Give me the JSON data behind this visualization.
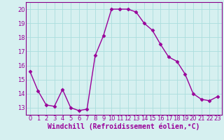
{
  "x": [
    0,
    1,
    2,
    3,
    4,
    5,
    6,
    7,
    8,
    9,
    10,
    11,
    12,
    13,
    14,
    15,
    16,
    17,
    18,
    19,
    20,
    21,
    22,
    23
  ],
  "y": [
    15.6,
    14.2,
    13.2,
    13.1,
    14.3,
    13.0,
    12.8,
    12.9,
    16.7,
    18.1,
    20.0,
    20.0,
    20.0,
    19.8,
    19.0,
    18.5,
    17.5,
    16.6,
    16.3,
    15.4,
    14.0,
    13.6,
    13.5,
    13.8
  ],
  "line_color": "#990099",
  "marker": "D",
  "marker_size": 2.5,
  "xlabel": "Windchill (Refroidissement éolien,°C)",
  "xlabel_fontsize": 7,
  "ylim": [
    12.5,
    20.5
  ],
  "xlim": [
    -0.5,
    23.5
  ],
  "yticks": [
    13,
    14,
    15,
    16,
    17,
    18,
    19,
    20
  ],
  "xticks": [
    0,
    1,
    2,
    3,
    4,
    5,
    6,
    7,
    8,
    9,
    10,
    11,
    12,
    13,
    14,
    15,
    16,
    17,
    18,
    19,
    20,
    21,
    22,
    23
  ],
  "grid_color": "#aadddd",
  "bg_color": "#d6f0f0",
  "line_width": 1.0,
  "tick_fontsize": 6,
  "spine_color": "#880088"
}
